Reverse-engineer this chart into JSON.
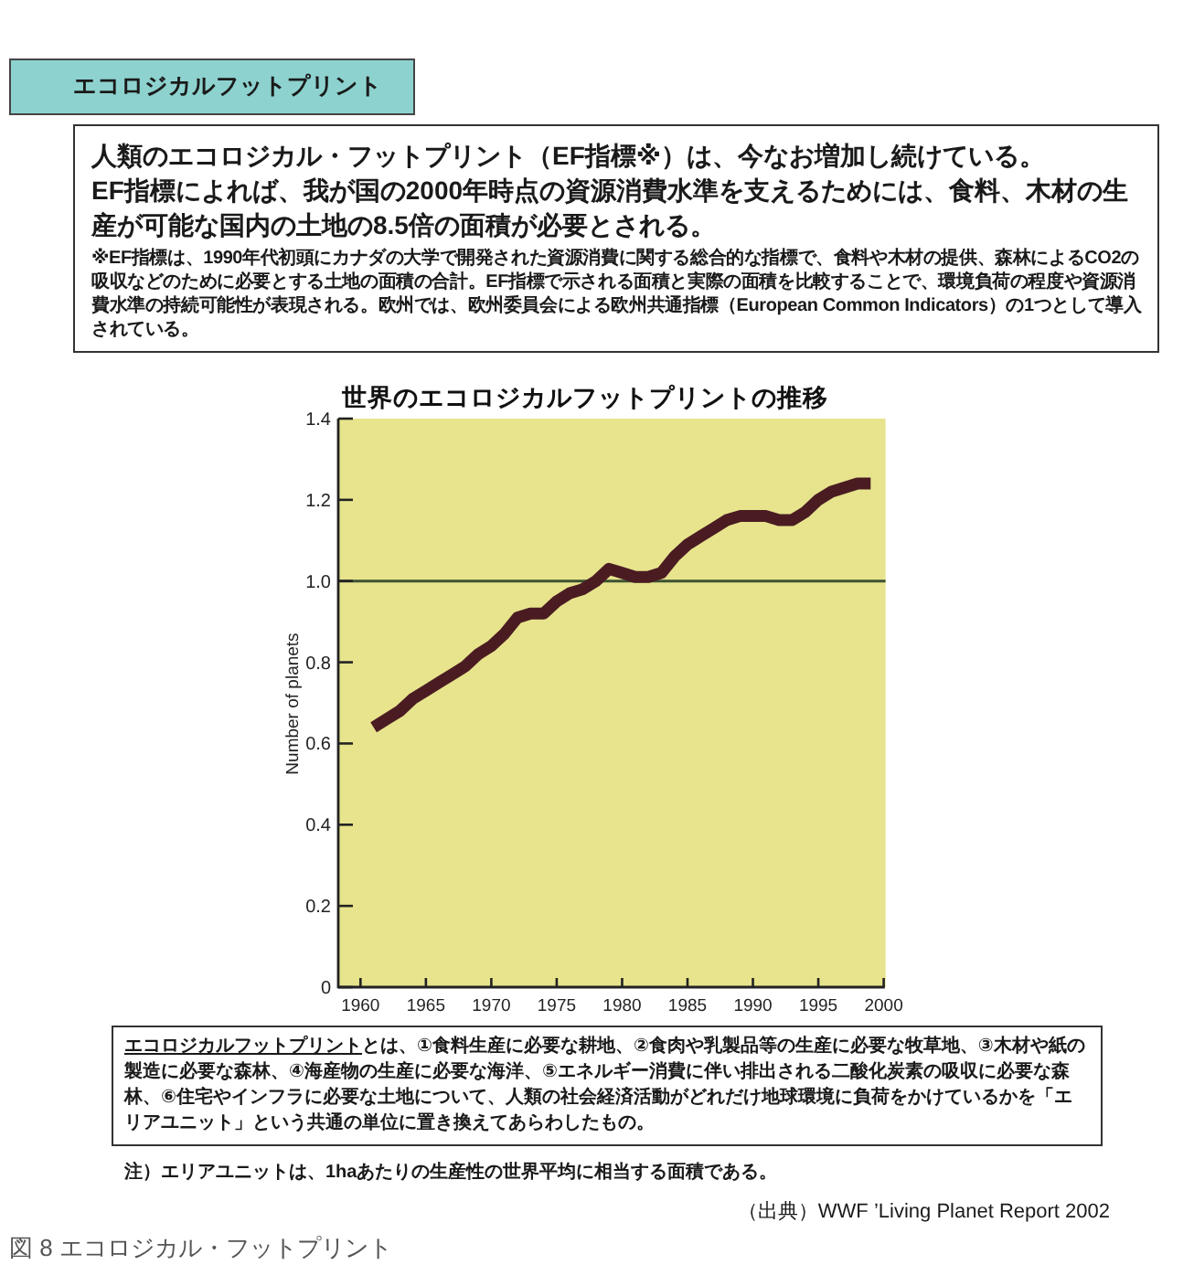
{
  "chart_data": {
    "type": "line",
    "title": "世界のエコロジカルフットプリントの推移",
    "ylabel": "Number of planets",
    "x": [
      1961,
      1962,
      1963,
      1964,
      1965,
      1966,
      1967,
      1968,
      1969,
      1970,
      1971,
      1972,
      1973,
      1974,
      1975,
      1976,
      1977,
      1978,
      1979,
      1980,
      1981,
      1982,
      1983,
      1984,
      1985,
      1986,
      1987,
      1988,
      1989,
      1990,
      1991,
      1992,
      1993,
      1994,
      1995,
      1996,
      1997,
      1998,
      1999
    ],
    "series": [
      {
        "color": "#4a1c22",
        "values": [
          0.64,
          0.66,
          0.68,
          0.71,
          0.73,
          0.75,
          0.77,
          0.79,
          0.82,
          0.84,
          0.87,
          0.91,
          0.92,
          0.92,
          0.95,
          0.97,
          0.98,
          1.0,
          1.03,
          1.02,
          1.01,
          1.01,
          1.02,
          1.06,
          1.09,
          1.11,
          1.13,
          1.15,
          1.16,
          1.16,
          1.16,
          1.15,
          1.15,
          1.17,
          1.2,
          1.22,
          1.23,
          1.24,
          1.24
        ]
      }
    ],
    "line_style": "solid",
    "xlim": [
      1958.3,
      2000
    ],
    "xticks": [
      1960,
      1965,
      1970,
      1975,
      1980,
      1985,
      1990,
      1995,
      2000
    ],
    "ylim": [
      0,
      1.4
    ],
    "yticks": [
      0,
      0.2,
      0.4,
      0.6,
      0.8,
      {
        "value": 1,
        "label": "1.0"
      },
      1.2,
      1.4
    ],
    "ref_lines": [
      {
        "axis": "y",
        "value": 1,
        "color": "#3c5232"
      }
    ],
    "annotations": [
      "エコロジカルフットプリント",
      "人類のエコロジカル・フットプリント（EF指標※）は、今なお増加し続けている。",
      "EF指標によれば、我が国の2000年時点の資源消費水準を支えるためには、食料、木材の生産が可能な国内の土地の8.5倍の面積が必要とされる。",
      "※EF指標は、1990年代初頭にカナダの大学で開発された資源消費に関する総合的な指標で、食料や木材の提供、森林によるCO2の吸収などのために必要とする土地の面積の合計。EF指標で示される面積と実際の面積を比較することで、環境負荷の程度や資源消費水準の持続可能性が表現される。欧州では、欧州委員会による欧州共通指標（European Common Indicators）の1つとして導入されている。",
      "エコロジカルフットプリント",
      "とは、①食料生産に必要な耕地、②食肉や乳製品等の生産に必要な牧草地、③木材や紙の製造に必要な森林、④海産物の生産に必要な海洋、⑤エネルギー消費に伴い排出される二酸化炭素の吸収に必要な森林、⑥住宅やインフラに必要な土地について、人類の社会経済活動がどれだけ地球環境に負荷をかけているかを「エリアユニット」という共通の単位に置き換えてあらわしたもの。",
      "注）エリアユニットは、1haあたりの生産性の世界平均に相当する面積である。",
      "（出典）WWF ’Living Planet Report 2002",
      "図 8 エコロジカル・フットプリント"
    ]
  }
}
